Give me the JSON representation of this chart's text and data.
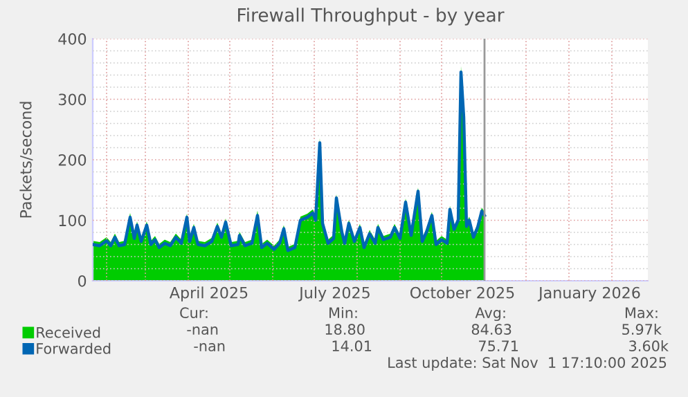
{
  "chart_data": {
    "type": "area",
    "title": "Firewall Throughput - by year",
    "ylabel": "Packets/second",
    "x": [
      "2025-01-22",
      "2025-01-27",
      "2025-02-01",
      "2025-02-04",
      "2025-02-07",
      "2025-02-10",
      "2025-02-14",
      "2025-02-18",
      "2025-02-21",
      "2025-02-23",
      "2025-02-26",
      "2025-03-02",
      "2025-03-05",
      "2025-03-08",
      "2025-03-11",
      "2025-03-15",
      "2025-03-19",
      "2025-03-23",
      "2025-03-27",
      "2025-03-31",
      "2025-04-02",
      "2025-04-05",
      "2025-04-08",
      "2025-04-13",
      "2025-04-18",
      "2025-04-22",
      "2025-04-25",
      "2025-04-28",
      "2025-05-02",
      "2025-05-07",
      "2025-05-08",
      "2025-05-12",
      "2025-05-17",
      "2025-05-21",
      "2025-05-24",
      "2025-05-28",
      "2025-06-02",
      "2025-06-06",
      "2025-06-09",
      "2025-06-12",
      "2025-06-17",
      "2025-06-21",
      "2025-06-26",
      "2025-06-30",
      "2025-07-02",
      "2025-07-05",
      "2025-07-07",
      "2025-07-11",
      "2025-07-15",
      "2025-07-17",
      "2025-07-21",
      "2025-07-23",
      "2025-07-26",
      "2025-07-30",
      "2025-08-03",
      "2025-08-06",
      "2025-08-10",
      "2025-08-14",
      "2025-08-16",
      "2025-08-20",
      "2025-08-25",
      "2025-08-28",
      "2025-09-01",
      "2025-09-05",
      "2025-09-09",
      "2025-09-14",
      "2025-09-17",
      "2025-09-20",
      "2025-09-24",
      "2025-09-27",
      "2025-10-01",
      "2025-10-05",
      "2025-10-07",
      "2025-10-10",
      "2025-10-13",
      "2025-10-15",
      "2025-10-17",
      "2025-10-19",
      "2025-10-21",
      "2025-10-24",
      "2025-10-27",
      "2025-10-30",
      "2025-11-01"
    ],
    "series": [
      {
        "name": "Received",
        "color": "#00cc00",
        "values": [
          66,
          64,
          72,
          64,
          78,
          64,
          66,
          112,
          76,
          98,
          71,
          98,
          66,
          74,
          61,
          68,
          64,
          78,
          68,
          111,
          71,
          94,
          66,
          64,
          71,
          96,
          78,
          103,
          64,
          66,
          81,
          64,
          68,
          116,
          61,
          68,
          58,
          68,
          92,
          56,
          61,
          106,
          111,
          118,
          106,
          236,
          101,
          68,
          76,
          143,
          86,
          68,
          101,
          71,
          94,
          61,
          84,
          68,
          94,
          74,
          78,
          94,
          76,
          136,
          81,
          154,
          71,
          86,
          114,
          66,
          74,
          68,
          124,
          91,
          106,
          355,
          280,
          96,
          106,
          78,
          94,
          121,
          114
        ]
      },
      {
        "name": "Forwarded",
        "type": "line",
        "color": "#0066b3",
        "values": [
          60,
          58,
          66,
          58,
          72,
          58,
          60,
          105,
          70,
          92,
          65,
          92,
          60,
          68,
          55,
          62,
          58,
          72,
          62,
          105,
          65,
          88,
          60,
          58,
          65,
          90,
          72,
          97,
          58,
          60,
          75,
          58,
          62,
          108,
          55,
          62,
          52,
          62,
          86,
          50,
          55,
          100,
          105,
          112,
          100,
          228,
          95,
          62,
          70,
          137,
          80,
          62,
          95,
          65,
          88,
          55,
          78,
          62,
          88,
          68,
          72,
          88,
          70,
          130,
          75,
          148,
          65,
          80,
          108,
          60,
          68,
          62,
          118,
          85,
          100,
          345,
          270,
          90,
          100,
          72,
          88,
          115,
          108
        ]
      }
    ],
    "xlim": [
      "2025-01-22",
      "2026-02-27"
    ],
    "xticks": [
      {
        "value": "2025-04-16",
        "label": "April 2025"
      },
      {
        "value": "2025-07-16",
        "label": "July 2025"
      },
      {
        "value": "2025-10-16",
        "label": "October 2025"
      },
      {
        "value": "2026-01-16",
        "label": "January 2026"
      }
    ],
    "ylim": [
      0,
      400
    ],
    "yticks": [
      0,
      100,
      200,
      300,
      400
    ],
    "ref_lines": [
      {
        "axis": "x",
        "value": "2025-11-01",
        "color": "#999999"
      }
    ],
    "grid": true,
    "legend": "bottom",
    "annotations": [
      "Cur:",
      "Min:",
      "Avg:",
      "Max:",
      "-nan",
      "18.80",
      "84.63",
      "5.97k",
      "-nan",
      "14.01",
      "75.71",
      "3.60k",
      "Last update: Sat Nov  1 17:10:00 2025"
    ]
  }
}
